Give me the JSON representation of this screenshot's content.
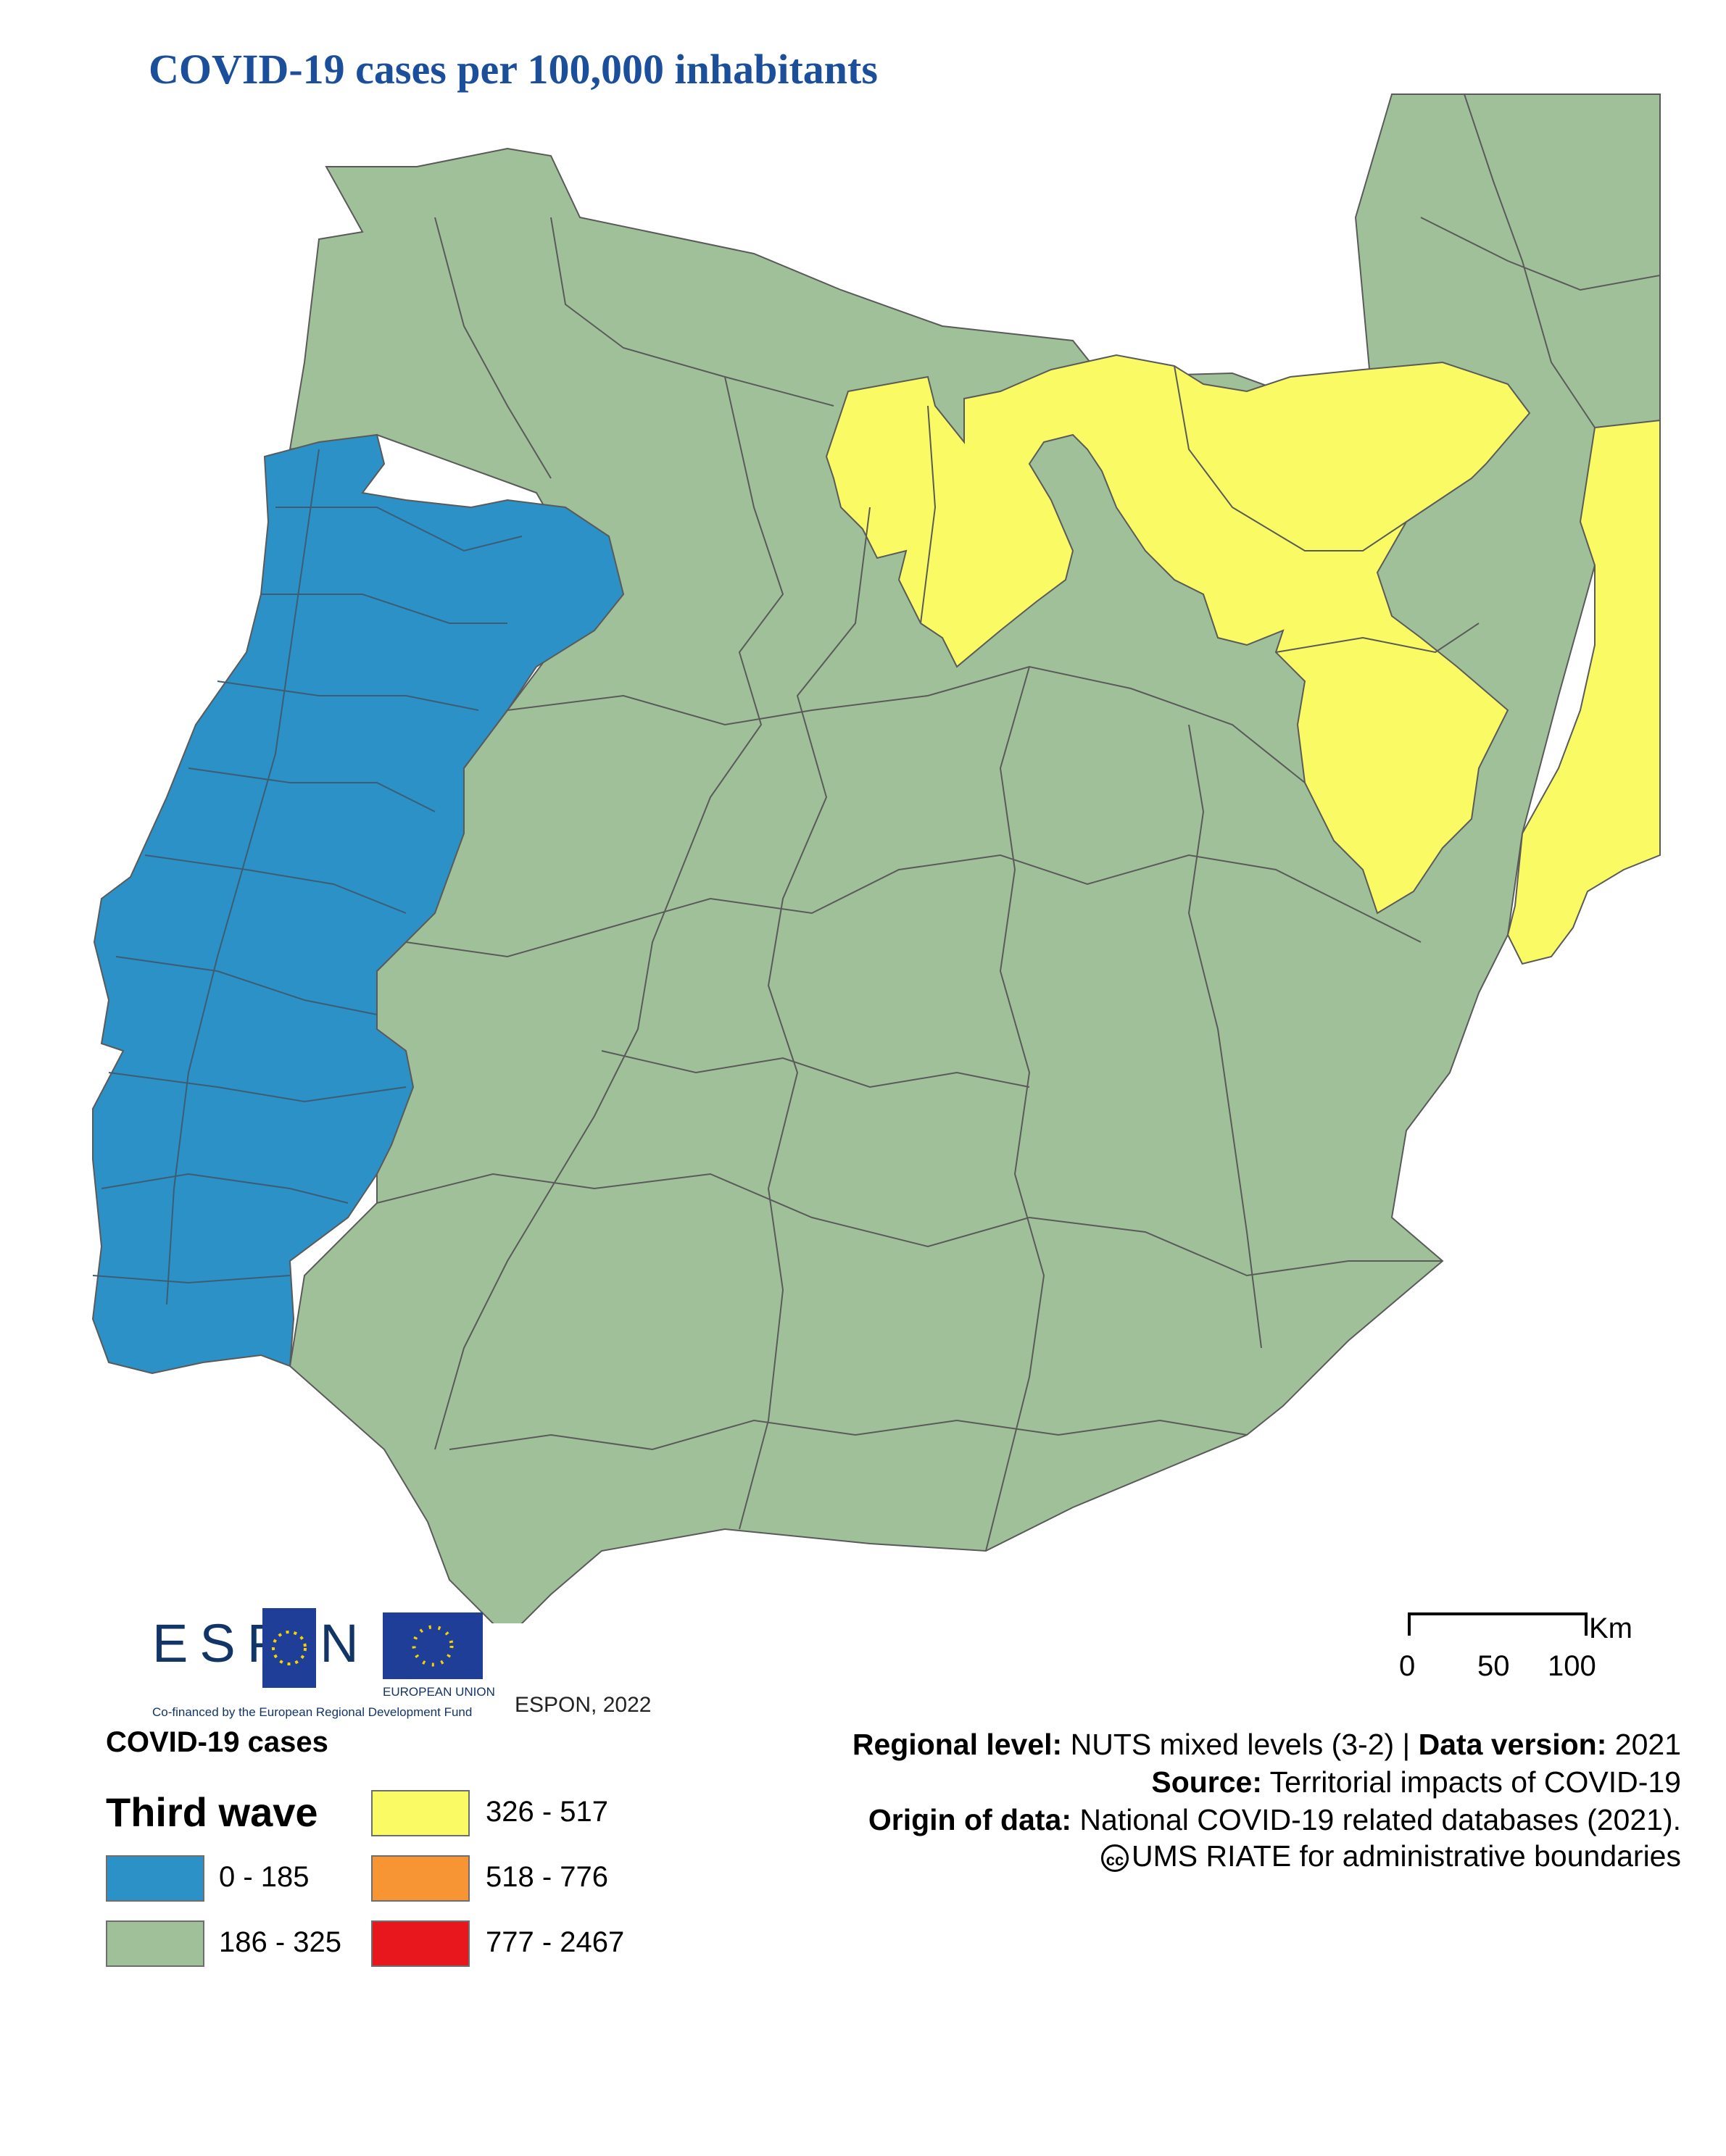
{
  "title": "COVID-19 cases per 100,000 inhabitants",
  "colors": {
    "low": "#2b91c6",
    "mid": "#a0c09a",
    "high": "#fafa64",
    "higher": "#f79433",
    "highest": "#e8161d",
    "border": "#5a5a5a",
    "title": "#1b4f9c"
  },
  "branding": {
    "espon_word": "ESP N",
    "cofinanced": "Co-financed by the European Regional Development Fund",
    "eu_label": "EUROPEAN UNION",
    "credit": "ESPON, 2022"
  },
  "scale": {
    "unit": "Km",
    "ticks": [
      "0",
      "50",
      "100"
    ]
  },
  "legend": {
    "title": "COVID-19 cases",
    "subtitle": "Third wave",
    "classes": [
      {
        "label": "0 - 185",
        "color": "#2b91c6"
      },
      {
        "label": "186 - 325",
        "color": "#a0c09a"
      },
      {
        "label": "326 - 517",
        "color": "#fafa64"
      },
      {
        "label": "518 - 776",
        "color": "#f79433"
      },
      {
        "label": "777 - 2467",
        "color": "#e8161d"
      }
    ]
  },
  "metadata": {
    "regional_level_label": "Regional level:",
    "regional_level_value": "NUTS mixed levels (3-2) |",
    "data_version_label": "Data version:",
    "data_version_value": "2021",
    "source_label": "Source:",
    "source_value": "Territorial impacts of COVID-19",
    "origin_label": "Origin of data:",
    "origin_value": "National COVID-19 related databases (2021).",
    "boundaries_value": "UMS RIATE for administrative boundaries"
  }
}
